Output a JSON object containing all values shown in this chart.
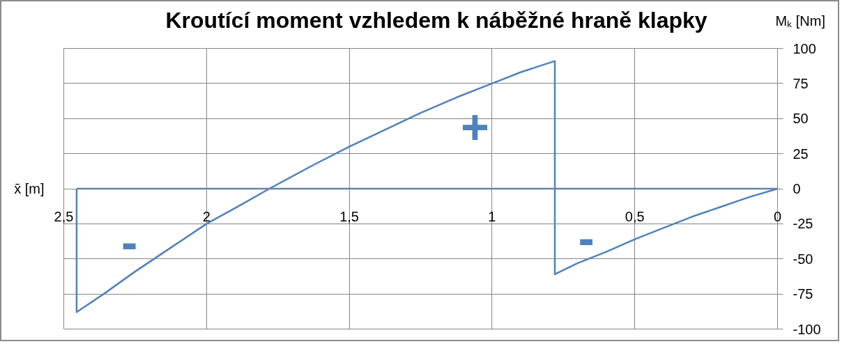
{
  "chart_data": {
    "type": "line",
    "title": "Kroutící moment vzhledem k náběžné hraně klapky",
    "xlabel": "x̄ [m]",
    "ylabel": "Mₖ [Nm]",
    "series": [
      {
        "color": "#4f81bd",
        "x": [
          2.455,
          0
        ],
        "values": [
          0,
          0
        ]
      },
      {
        "color": "#4f81bd",
        "x": [
          0,
          0.1,
          0.2,
          0.3,
          0.4,
          0.5,
          0.6,
          0.7,
          0.78,
          0.78,
          0.9,
          1.0,
          1.125,
          1.25,
          1.375,
          1.5,
          1.625,
          1.78,
          1.875,
          2.0,
          2.125,
          2.25,
          2.36,
          2.455,
          2.455
        ],
        "values": [
          0,
          -6,
          -13,
          -20,
          -28,
          -36,
          -45,
          -53,
          -61,
          91,
          83,
          75,
          65,
          54,
          42,
          30,
          17,
          0,
          -11,
          -25,
          -42,
          -59,
          -75,
          -88,
          0
        ]
      }
    ],
    "xlim": [
      2.5,
      0
    ],
    "ylim": [
      -100,
      100
    ],
    "xticks": [
      {
        "value": 2.5,
        "label": "2,5"
      },
      2,
      {
        "value": 1.5,
        "label": "1,5"
      },
      1,
      {
        "value": 0.5,
        "label": "0,5"
      },
      0
    ],
    "yticks": [
      -100,
      -75,
      -50,
      -25,
      0,
      25,
      50,
      75,
      100
    ],
    "grid": true,
    "annotations": [
      "+",
      "-",
      "-"
    ]
  }
}
